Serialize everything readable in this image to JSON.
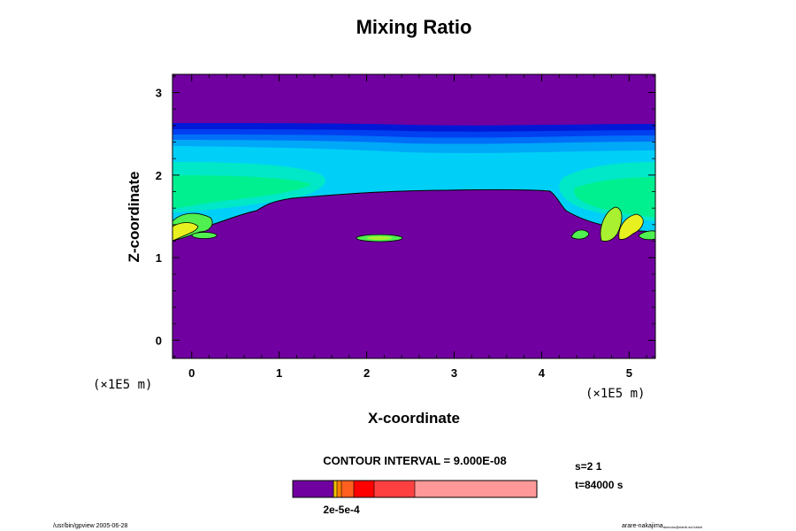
{
  "chart_data": {
    "type": "heatmap",
    "title": "Mixing Ratio",
    "xlabel": "X-coordinate",
    "ylabel": "Z-coordinate",
    "xunit_left": "(×1E5 m)",
    "xunit_right": "(×1E5 m)",
    "xlim": [
      -0.22,
      5.3
    ],
    "ylim": [
      -0.22,
      3.22
    ],
    "xticks": [
      0,
      1,
      2,
      3,
      4,
      5
    ],
    "yticks": [
      0,
      1,
      2,
      3
    ],
    "contour_interval": "CONTOUR INTERVAL = 9.000E-08",
    "info_s": "s=2 1",
    "info_t": "t=84000 s",
    "colorbar_label": "2e-5e-4",
    "footer_left": "/usr/bin/gpview 2005-06-28",
    "footer_right": "arare-nakajima",
    "footer_right_small": "dumonc@earth.sci.tottori",
    "colors": {
      "background_level": "#7000a0",
      "levels": [
        "#0018d8",
        "#0040f0",
        "#0070f8",
        "#00a8f8",
        "#00d0f8",
        "#00e8c8",
        "#00f090",
        "#50f050",
        "#a8f030",
        "#e8f020"
      ],
      "colorbar": [
        "#7000a0",
        "#f0c000",
        "#ff8000",
        "#ff6020",
        "#ff0000",
        "#ff4040",
        "#ff9898"
      ]
    }
  }
}
